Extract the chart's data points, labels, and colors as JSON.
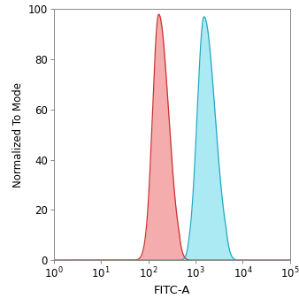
{
  "title": "",
  "xlabel": "FITC-A",
  "ylabel": "Normalized To Mode",
  "xlim_log": [
    0,
    5
  ],
  "ylim": [
    0,
    100
  ],
  "yticks": [
    0,
    20,
    40,
    60,
    80,
    100
  ],
  "xtick_positions": [
    0,
    1,
    2,
    3,
    4,
    5
  ],
  "red_peak_log_mean": 2.22,
  "red_peak_log_std": 0.13,
  "red_peak_height": 98,
  "cyan_peak_log_mean": 3.18,
  "cyan_peak_log_std": 0.145,
  "cyan_peak_height": 97,
  "red_fill_color": "#f08080",
  "red_line_color": "#cd3030",
  "cyan_fill_color": "#7fdfee",
  "cyan_line_color": "#20a8c8",
  "fill_alpha": 0.65,
  "background_color": "#ffffff",
  "figsize": [
    3.38,
    3.46
  ],
  "dpi": 100
}
